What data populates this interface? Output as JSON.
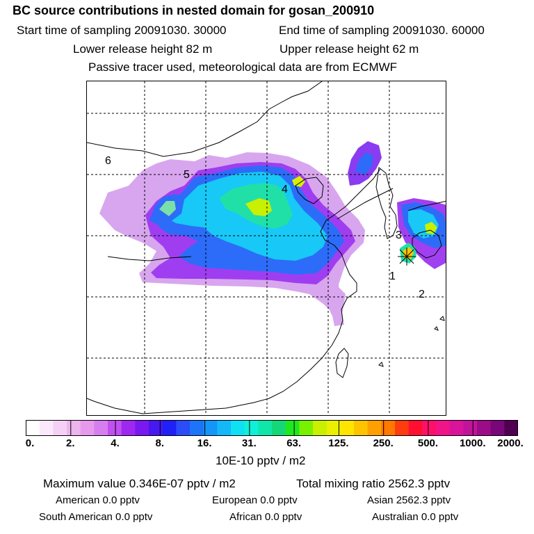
{
  "header": {
    "title": "BC  source contributions in nested domain for gosan_200910",
    "start_label": "Start time of sampling 20091030. 30000",
    "end_label": "End time of sampling 20091030. 60000",
    "lower_label": "Lower release height   82 m",
    "upper_label": "Upper release height   62 m",
    "note": "Passive tracer used, meteorological data are from ECMWF"
  },
  "map": {
    "region_labels": [
      "1",
      "2",
      "3",
      "4",
      "5",
      "6"
    ]
  },
  "colorbar": {
    "colors": [
      "#ffffff",
      "#fbe8fb",
      "#f5d0f5",
      "#edb4ee",
      "#e69aee",
      "#d67ef0",
      "#c050f0",
      "#9f28f0",
      "#7a18f0",
      "#4818f0",
      "#2020f8",
      "#2c4cf8",
      "#1c74f8",
      "#1496f8",
      "#14b8f8",
      "#10e0f4",
      "#10f0d8",
      "#10e6a8",
      "#14d878",
      "#20e81c",
      "#78f000",
      "#c8f000",
      "#eaf000",
      "#ffe400",
      "#ffc400",
      "#ffa000",
      "#ff7800",
      "#ff3c10",
      "#ff1030",
      "#ff1068",
      "#f01488",
      "#d8149a",
      "#c0149a",
      "#9c0c86",
      "#78087a",
      "#500050"
    ],
    "tick_labels": [
      "0.",
      "2.",
      "4.",
      "8.",
      "16.",
      "31.",
      "63.",
      "125.",
      "250.",
      "500.",
      "1000.",
      "2000."
    ],
    "units": "10E-10 pptv / m2"
  },
  "footer": {
    "max_label": "Maximum value  0.346E-07 pptv / m2",
    "total_label": "Total mixing ratio     2562.3 pptv",
    "american": "American         0.0 pptv",
    "european": "European        0.0 pptv",
    "asian": "Asian     2562.3 pptv",
    "south_american": "South American         0.0 pptv",
    "african": "African         0.0 pptv",
    "australian": "Australian         0.0 pptv"
  }
}
